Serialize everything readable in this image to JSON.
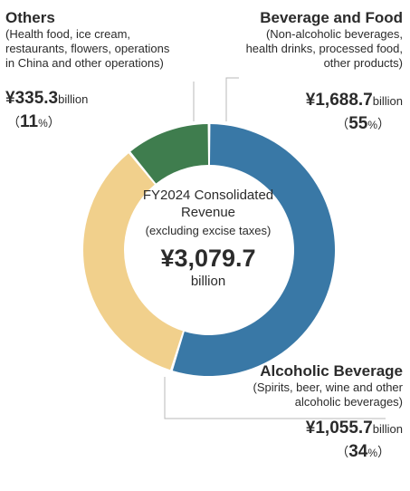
{
  "chart_data": {
    "type": "pie",
    "title": "FY2024 Consolidated Revenue",
    "subtitle": "(excluding excise taxes)",
    "total": "¥3,079.7",
    "total_unit": "billion",
    "currency_unit": "billion",
    "percent_sign": "%",
    "slices": [
      {
        "name": "Beverage and Food",
        "description": [
          "(Non-alcoholic beverages,",
          "health drinks, processed food,",
          "other products)"
        ],
        "amount": "¥1,688.7",
        "value": 1688.7,
        "percent": 55,
        "color": "#3978a6"
      },
      {
        "name": "Alcoholic Beverage",
        "description": [
          "(Spirits, beer, wine and other",
          "alcoholic beverages)"
        ],
        "amount": "¥1,055.7",
        "value": 1055.7,
        "percent": 34,
        "color": "#f1d08c"
      },
      {
        "name": "Others",
        "description": [
          "(Health food, ice cream,",
          "restaurants, flowers, operations",
          "in China and other operations)"
        ],
        "amount": "¥335.3",
        "value": 335.3,
        "percent": 11,
        "color": "#3f7d4e"
      }
    ]
  }
}
